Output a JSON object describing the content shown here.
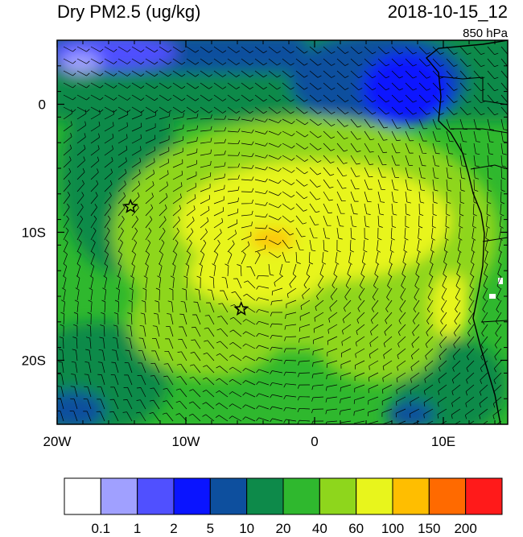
{
  "map": {
    "title": "Dry PM2.5 (ug/kg)",
    "datetime": "2018-10-15_12",
    "level": "850 hPa",
    "lon_range": [
      -20,
      15
    ],
    "lat_range": [
      -25,
      5
    ],
    "lon_ticks": [
      {
        "value": -20,
        "label": "20W"
      },
      {
        "value": -10,
        "label": "10W"
      },
      {
        "value": 0,
        "label": "0"
      },
      {
        "value": 10,
        "label": "10E"
      }
    ],
    "lat_ticks": [
      {
        "value": 0,
        "label": "0"
      },
      {
        "value": -10,
        "label": "10S"
      },
      {
        "value": -20,
        "label": "20S"
      }
    ],
    "markers": [
      {
        "name": "star-marker-1",
        "lon": -14.3,
        "lat": -8.0
      },
      {
        "name": "star-marker-2",
        "lon": -5.7,
        "lat": -16.0
      }
    ]
  },
  "colorbar": {
    "colors": [
      "#ffffff",
      "#a0a0ff",
      "#5050ff",
      "#0a14ff",
      "#0d4f9e",
      "#0d8a4a",
      "#2fb82e",
      "#8ed61c",
      "#e8f51c",
      "#ffbe00",
      "#ff6a00",
      "#ff1a1a"
    ],
    "labels": [
      "0.1",
      "1",
      "2",
      "5",
      "10",
      "20",
      "40",
      "60",
      "100",
      "150",
      "200"
    ]
  }
}
